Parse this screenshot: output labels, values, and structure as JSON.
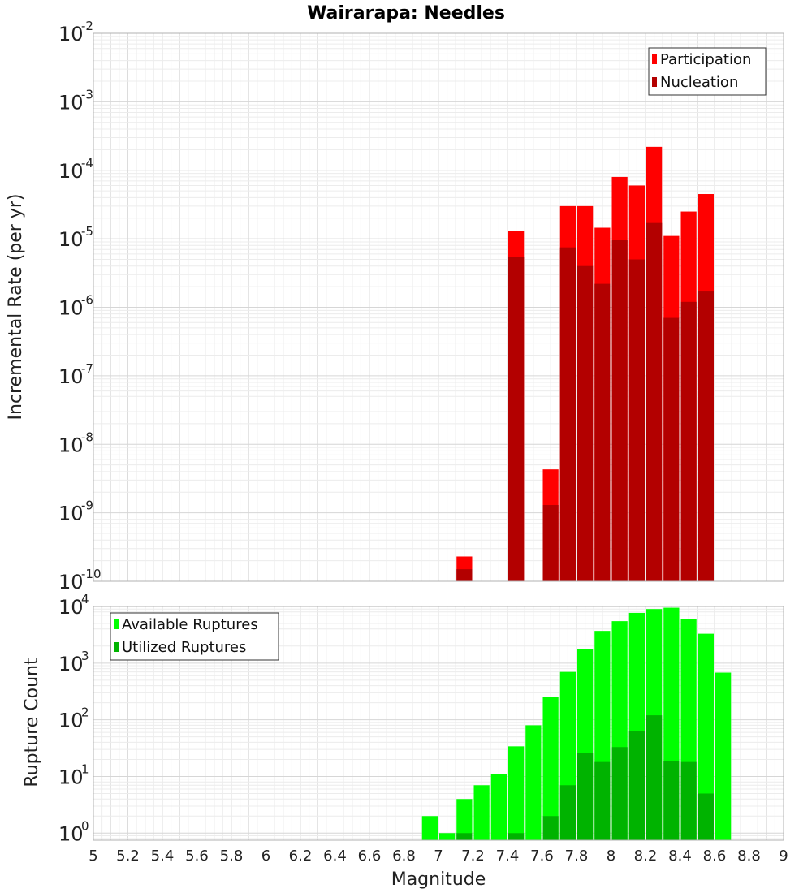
{
  "title": "Wairarapa: Needles",
  "chart_data": [
    {
      "type": "bar",
      "name_panel": "top",
      "ylabel": "Incremental Rate (per yr)",
      "yscale": "log",
      "ylim": [
        1e-10,
        0.01
      ],
      "ytick_exponents": [
        -10,
        -9,
        -8,
        -7,
        -6,
        -5,
        -4,
        -3,
        -2
      ],
      "ytick_base": "10",
      "xlim": [
        5,
        9
      ],
      "grid": true,
      "legend_position": "top-right",
      "series": [
        {
          "name": "Participation",
          "color": "#ff0000",
          "x": [
            7.15,
            7.45,
            7.65,
            7.75,
            7.85,
            7.95,
            8.05,
            8.15,
            8.25,
            8.35,
            8.45,
            8.55
          ],
          "values": [
            2.3e-10,
            1.3e-05,
            4.3e-09,
            3e-05,
            3e-05,
            1.45e-05,
            8e-05,
            6e-05,
            0.00022,
            1.1e-05,
            2.5e-05,
            4.5e-05
          ]
        },
        {
          "name": "Nucleation",
          "color": "#b30000",
          "x": [
            7.15,
            7.45,
            7.65,
            7.75,
            7.85,
            7.95,
            8.05,
            8.15,
            8.25,
            8.35,
            8.45,
            8.55
          ],
          "values": [
            1.5e-10,
            5.5e-06,
            1.3e-09,
            7.5e-06,
            4e-06,
            2.2e-06,
            9.5e-06,
            5e-06,
            1.7e-05,
            7e-07,
            1.2e-06,
            1.7e-06
          ]
        }
      ]
    },
    {
      "type": "bar",
      "name_panel": "bottom",
      "ylabel": "Rupture Count",
      "xlabel": "Magnitude",
      "yscale": "log",
      "ylim": [
        0.75,
        10000
      ],
      "ytick_exponents": [
        0,
        1,
        2,
        3,
        4
      ],
      "ytick_base": "10",
      "xlim": [
        5,
        9
      ],
      "xticks": [
        "5",
        "5.2",
        "5.4",
        "5.6",
        "5.8",
        "6",
        "6.2",
        "6.4",
        "6.6",
        "6.8",
        "7",
        "7.2",
        "7.4",
        "7.6",
        "7.8",
        "8",
        "8.2",
        "8.4",
        "8.6",
        "8.8",
        "9"
      ],
      "grid": true,
      "legend_position": "top-left",
      "series": [
        {
          "name": "Available Ruptures",
          "color": "#00ff00",
          "x": [
            6.95,
            7.05,
            7.15,
            7.25,
            7.35,
            7.45,
            7.55,
            7.65,
            7.75,
            7.85,
            7.95,
            8.05,
            8.15,
            8.25,
            8.35,
            8.45,
            8.55,
            8.65
          ],
          "values": [
            2,
            1,
            4,
            7,
            11,
            34,
            80,
            250,
            700,
            1800,
            3700,
            5500,
            7700,
            9000,
            9500,
            6000,
            3300,
            680
          ]
        },
        {
          "name": "Utilized Ruptures",
          "color": "#00b300",
          "x": [
            7.15,
            7.45,
            7.65,
            7.75,
            7.85,
            7.95,
            8.05,
            8.15,
            8.25,
            8.35,
            8.45,
            8.55
          ],
          "values": [
            1,
            1,
            2,
            7,
            26,
            18,
            33,
            63,
            120,
            19,
            18,
            5
          ]
        }
      ]
    }
  ]
}
